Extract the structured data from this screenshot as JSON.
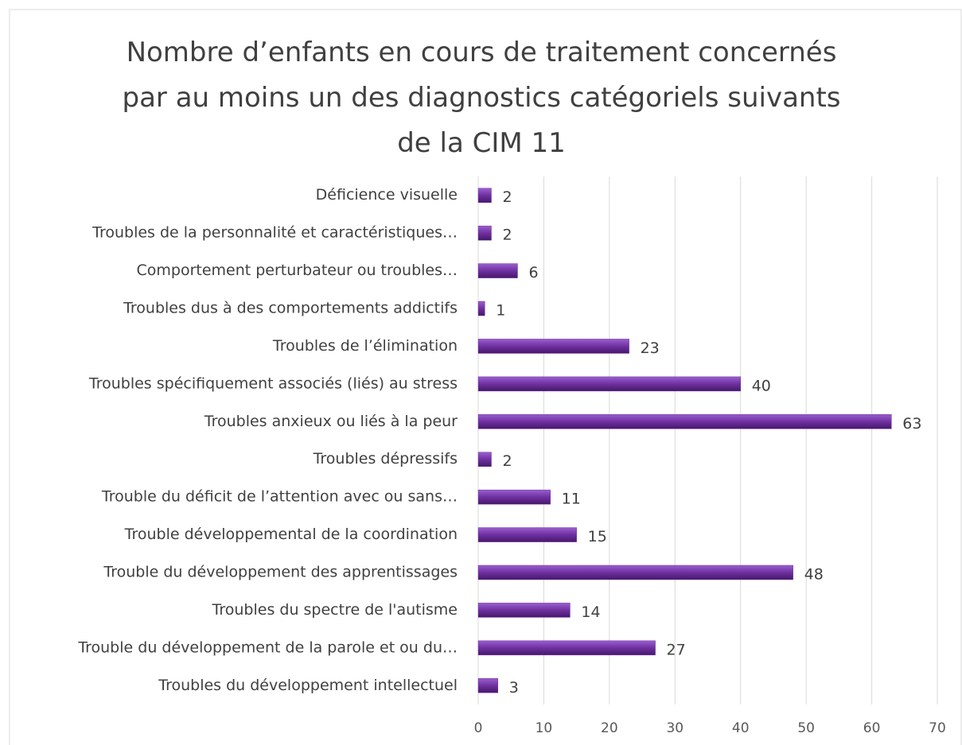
{
  "chart_data": {
    "type": "bar",
    "orientation": "horizontal",
    "title": "Nombre d’enfants en cours de traitement concernés par au moins un des diagnostics catégoriels suivants de la CIM 11",
    "categories": [
      "Déficience visuelle",
      "Troubles de la personnalité et caractéristiques…",
      "Comportement perturbateur ou troubles…",
      "Troubles dus à des comportements addictifs",
      "Troubles de l’élimination",
      "Troubles spécifiquement associés (liés) au stress",
      "Troubles anxieux ou liés à la peur",
      "Troubles dépressifs",
      "Trouble du déficit de l’attention avec ou sans…",
      "Trouble développemental de la coordination",
      "Trouble du développement des apprentissages",
      "Troubles du spectre de l'autisme",
      "Trouble du développement de la parole et ou du…",
      "Troubles du développement intellectuel"
    ],
    "values": [
      2,
      2,
      6,
      1,
      23,
      40,
      63,
      2,
      11,
      15,
      48,
      14,
      27,
      3
    ],
    "color": "#7030a0",
    "xlim": [
      0,
      70
    ],
    "xticks": [
      0,
      10,
      20,
      30,
      40,
      50,
      60,
      70
    ],
    "grid": true
  }
}
